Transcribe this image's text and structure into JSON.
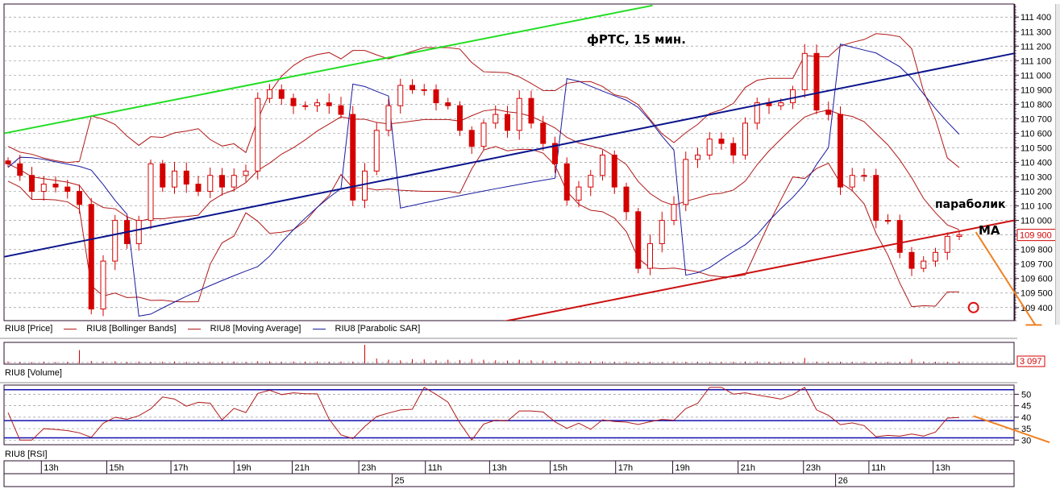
{
  "chart_data": {
    "type": "candlestick",
    "title": "фРТС, 15 мин.",
    "y_ticks": [
      109400,
      109500,
      109600,
      109700,
      109800,
      109900,
      110000,
      110100,
      110200,
      110300,
      110400,
      110500,
      110600,
      110700,
      110800,
      110900,
      111000,
      111100,
      111200,
      111300,
      111400
    ],
    "ylim": [
      109310,
      111490
    ],
    "last_price_label": "109 900",
    "close": [
      110390,
      110310,
      110200,
      110250,
      110230,
      110200,
      110110,
      109390,
      109720,
      110000,
      109840,
      110000,
      110390,
      110230,
      110340,
      110250,
      110200,
      110310,
      110230,
      110310,
      110340,
      110840,
      110900,
      110840,
      110790,
      110790,
      110810,
      110790,
      110730,
      110140,
      110340,
      110620,
      110790,
      110930,
      110900,
      110900,
      110810,
      110790,
      110620,
      110510,
      110670,
      110730,
      110620,
      110840,
      110670,
      110530,
      110390,
      110140,
      110230,
      110310,
      110450,
      110230,
      110060,
      109670,
      109840,
      110000,
      110110,
      110420,
      110450,
      110560,
      110530,
      110450,
      110670,
      110810,
      110790,
      110810,
      110900,
      111150,
      110760,
      110730,
      110230,
      110310,
      110310,
      110000,
      110000,
      109780,
      109670,
      109720,
      109780,
      109890,
      109900
    ],
    "volume": [
      300,
      250,
      200,
      280,
      220,
      260,
      2200,
      400,
      300,
      350,
      260,
      300,
      250,
      280,
      300,
      240,
      260,
      230,
      280,
      300,
      260,
      350,
      320,
      260,
      300,
      280,
      300,
      250,
      300,
      280,
      3097,
      800,
      600,
      500,
      700,
      650,
      500,
      600,
      550,
      700,
      600,
      500,
      450,
      600,
      500,
      450,
      400,
      350,
      300,
      380,
      300,
      250,
      280,
      260,
      240,
      220,
      300,
      250,
      260,
      240,
      230,
      260,
      280,
      300,
      250,
      240,
      260,
      900,
      300,
      280,
      260,
      240,
      250,
      260,
      230,
      240,
      700,
      300,
      260,
      250,
      300
    ],
    "volume_label": "3 097",
    "rsi_ticks": [
      30,
      35,
      40,
      45,
      50
    ],
    "rsi_levels": [
      52,
      38.5,
      31
    ],
    "time_ticks": [
      {
        "label": "13h",
        "at": 2.8
      },
      {
        "label": "15h",
        "at": 8.3
      },
      {
        "label": "17h",
        "at": 13.7
      },
      {
        "label": "19h",
        "at": 19.0
      },
      {
        "label": "21h",
        "at": 23.9
      },
      {
        "label": "23h",
        "at": 29.5
      },
      {
        "label": "11h",
        "at": 35.1
      },
      {
        "label": "13h",
        "at": 40.5
      },
      {
        "label": "15h",
        "at": 45.6
      },
      {
        "label": "17h",
        "at": 51.1
      },
      {
        "label": "19h",
        "at": 55.9
      },
      {
        "label": "21h",
        "at": 61.4
      },
      {
        "label": "23h",
        "at": 66.9
      },
      {
        "label": "11h",
        "at": 72.4
      },
      {
        "label": "13h",
        "at": 77.8
      }
    ],
    "day_ticks": [
      {
        "label": "25",
        "at": 32.3
      },
      {
        "label": "26",
        "at": 69.6
      }
    ],
    "trendlines": [
      {
        "name": "green-trendline",
        "color": "#22dd22",
        "from": [
          -0.3,
          110600
        ],
        "to": [
          54.2,
          111480
        ]
      },
      {
        "name": "blue-trendline",
        "color": "#0a148c",
        "from": [
          -0.3,
          109750
        ],
        "to": [
          84.6,
          111150
        ]
      },
      {
        "name": "red-trendline",
        "color": "#cc1111",
        "from": [
          41.4,
          109300
        ],
        "to": [
          84.6,
          110000
        ]
      },
      {
        "name": "orange-arrow-price",
        "color": "#f08020",
        "from": [
          81.4,
          109920
        ],
        "to": [
          86.4,
          109280
        ]
      }
    ],
    "annotations": {
      "parabolic": "параболик",
      "ma": "МА"
    },
    "marker_circle": {
      "at": 81.2,
      "price": 109400,
      "color": "#e01010"
    },
    "rsi_arrow": {
      "color": "#f08020",
      "from": [
        81.2,
        40.5
      ],
      "to": [
        87.6,
        29
      ]
    },
    "colors": {
      "candle": "#d40000",
      "bollinger": "#b01818",
      "ma": "#b01818",
      "sar": "#1a1aa0",
      "rsi": "#b01818",
      "rsi_level": "#1010b0",
      "frame": "#2a0f2a"
    }
  },
  "legend": {
    "price": "RIU8 [Price]",
    "bollinger": "RIU8 [Bollinger Bands]",
    "ma": "RIU8 [Moving Average]",
    "sar": "RIU8 [Parabolic SAR]"
  },
  "panels": {
    "volume": "RIU8 [Volume]",
    "rsi": "RIU8 [RSI]"
  }
}
